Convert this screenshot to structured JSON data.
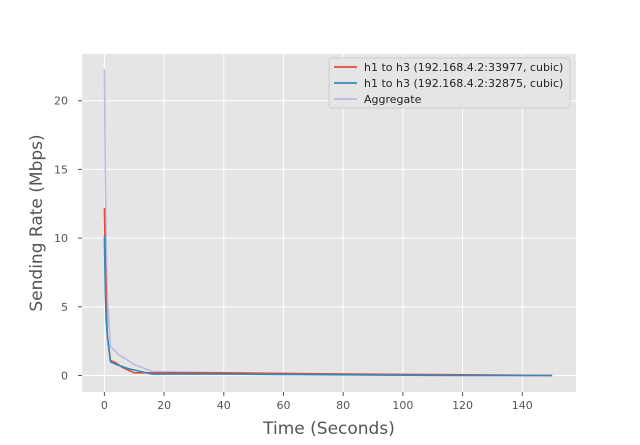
{
  "chart_data": {
    "type": "line",
    "xlabel": "Time (Seconds)",
    "ylabel": "Sending Rate (Mbps)",
    "xlim": [
      -7.5,
      158
    ],
    "ylim": [
      -1.2,
      23.4
    ],
    "xticks": [
      0,
      20,
      40,
      60,
      80,
      100,
      120,
      140
    ],
    "yticks": [
      0,
      5,
      10,
      15,
      20
    ],
    "grid": true,
    "background": "#e5e5e5",
    "legend_position": "top-right",
    "series": [
      {
        "name": "h1 to h3 (192.168.4.2:33977, cubic)",
        "color": "#e24a33",
        "x": [
          0,
          0.3,
          0.6,
          1,
          2,
          4,
          6,
          10,
          16,
          40,
          80,
          120,
          150
        ],
        "y": [
          12.2,
          8.5,
          5.2,
          2.8,
          1.1,
          0.9,
          0.6,
          0.2,
          0.2,
          0.2,
          0.1,
          0.05,
          0.0
        ]
      },
      {
        "name": "h1 to h3 (192.168.4.2:32875, cubic)",
        "color": "#348abd",
        "x": [
          0,
          0.3,
          0.6,
          1,
          2,
          4,
          8,
          16,
          40,
          80,
          120,
          150
        ],
        "y": [
          10.1,
          6.0,
          4.0,
          2.9,
          1.0,
          0.8,
          0.5,
          0.1,
          0.1,
          0.05,
          0.0,
          0.0
        ]
      },
      {
        "name": "Aggregate",
        "color": "#bcb8e0",
        "x": [
          0,
          0.3,
          0.6,
          1,
          2,
          5,
          10,
          16,
          40,
          80,
          120,
          150
        ],
        "y": [
          22.3,
          14.5,
          9.2,
          5.7,
          2.1,
          1.5,
          0.8,
          0.3,
          0.2,
          0.1,
          0.05,
          0.0
        ]
      }
    ]
  }
}
